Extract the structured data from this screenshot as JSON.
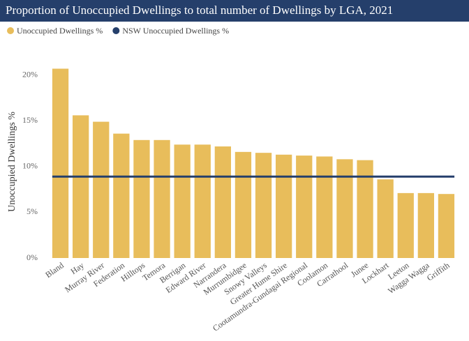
{
  "chart_data": {
    "type": "bar",
    "title": "Proportion of Unoccupied Dwellings to total number of Dwellings by LGA, 2021",
    "y_label": "Unoccupied Dwellings %",
    "categories": [
      "Bland",
      "Hay",
      "Murray River",
      "Federation",
      "Hilltops",
      "Temora",
      "Berrigan",
      "Edward River",
      "Narrandera",
      "Murrumbidgee",
      "Snowy Valleys",
      "Greater Hume Shire",
      "Cootamundra-Gundagai Regional",
      "Coolamon",
      "Carrathool",
      "Junee",
      "Lockhart",
      "Leeton",
      "Wagga Wagga",
      "Griffith"
    ],
    "series": [
      {
        "name": "Unoccupied Dwellings %",
        "type": "bar",
        "color": "#e8bd5b",
        "values": [
          20.7,
          15.6,
          14.9,
          13.6,
          12.9,
          12.9,
          12.4,
          12.4,
          12.2,
          11.6,
          11.5,
          11.3,
          11.2,
          11.1,
          10.8,
          10.7,
          8.6,
          7.1,
          7.1,
          7.0
        ]
      },
      {
        "name": "NSW Unoccupied Dwellings %",
        "type": "line",
        "color": "#253f6b",
        "values": [
          8.9,
          8.9,
          8.9,
          8.9,
          8.9,
          8.9,
          8.9,
          8.9,
          8.9,
          8.9,
          8.9,
          8.9,
          8.9,
          8.9,
          8.9,
          8.9,
          8.9,
          8.9,
          8.9,
          8.9
        ]
      }
    ],
    "ylim": [
      0,
      21.5
    ],
    "yticks": [
      {
        "value": 0,
        "label": "0%"
      },
      {
        "value": 5,
        "label": "5%"
      },
      {
        "value": 10,
        "label": "10%"
      },
      {
        "value": 15,
        "label": "15%"
      },
      {
        "value": 20,
        "label": "20%"
      }
    ],
    "grid": false,
    "legend": "top-left"
  }
}
